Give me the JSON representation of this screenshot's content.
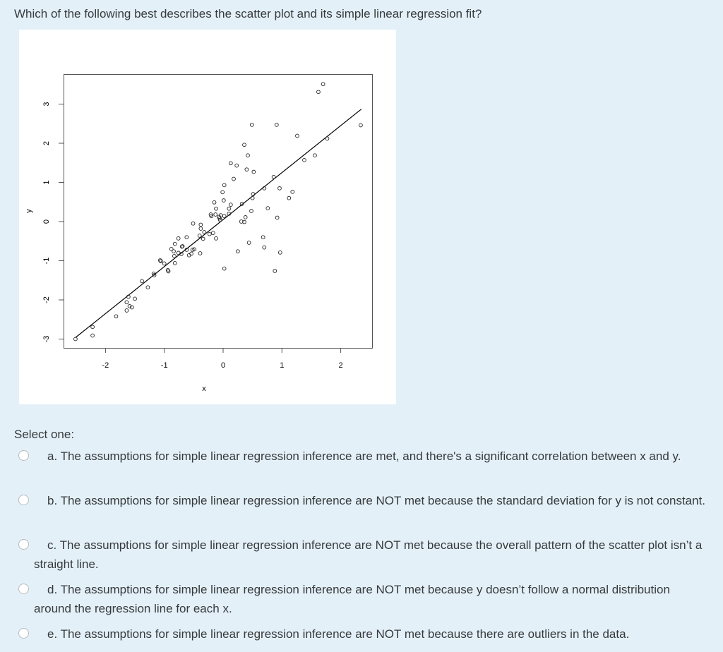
{
  "question": "Which of the following best describes the scatter plot and its simple linear regression fit?",
  "select_label": "Select one:",
  "options": [
    {
      "label": "a. The assumptions for simple linear regression inference are met, and there's a significant correlation between x and y."
    },
    {
      "label": "b. The assumptions for simple linear regression inference are NOT met because the standard deviation for y is not constant."
    },
    {
      "label": "c. The assumptions for simple linear regression inference are NOT met because the overall pattern of the scatter plot isn’t a straight line."
    },
    {
      "label": "d. The assumptions for simple linear regression inference are NOT met because y doesn’t follow a normal distribution around the regression line for each x."
    },
    {
      "label": "e. The assumptions for simple linear regression inference are NOT met because there are outliers in the data."
    }
  ],
  "colors": {
    "background": "#e3f0f8",
    "text": "#373a3c",
    "panel": "#ffffff",
    "ink": "#000000"
  },
  "chart_data": {
    "type": "scatter",
    "xlabel": "x",
    "ylabel": "y",
    "xlim": [
      -2.6,
      2.6
    ],
    "ylim": [
      -3.3,
      3.6
    ],
    "xticks": [
      -2,
      -1,
      0,
      1,
      2
    ],
    "xtick_labels": [
      "-2",
      "-1",
      "0",
      "1",
      "2"
    ],
    "yticks": [
      -3,
      -2,
      -1,
      0,
      1,
      2,
      3
    ],
    "ytick_labels": [
      "-3",
      "-2",
      "-1",
      "0",
      "1",
      "2",
      "3"
    ],
    "grid": false,
    "marker": "open-circle",
    "regression_line": {
      "intercept": 0.05,
      "slope": 1.2,
      "x_range": [
        -2.51,
        2.35
      ]
    },
    "points": [
      [
        -2.51,
        -3.0
      ],
      [
        -2.22,
        -2.69
      ],
      [
        -2.22,
        -2.91
      ],
      [
        -1.82,
        -2.42
      ],
      [
        -1.64,
        -2.27
      ],
      [
        -1.64,
        -2.06
      ],
      [
        -1.61,
        -1.92
      ],
      [
        -1.59,
        -2.16
      ],
      [
        -1.55,
        -2.19
      ],
      [
        -1.5,
        -1.97
      ],
      [
        -1.38,
        -1.52
      ],
      [
        -1.28,
        -1.68
      ],
      [
        -1.18,
        -1.33
      ],
      [
        -1.17,
        -1.37
      ],
      [
        -1.07,
        -0.99
      ],
      [
        -1.06,
        -1.01
      ],
      [
        -1.0,
        -1.07
      ],
      [
        -0.94,
        -1.24
      ],
      [
        -0.93,
        -1.27
      ],
      [
        -0.88,
        -0.7
      ],
      [
        -0.84,
        -0.76
      ],
      [
        -0.83,
        -0.88
      ],
      [
        -0.82,
        -1.06
      ],
      [
        -0.82,
        -0.57
      ],
      [
        -0.76,
        -0.43
      ],
      [
        -0.76,
        -0.8
      ],
      [
        -0.71,
        -0.83
      ],
      [
        -0.7,
        -0.64
      ],
      [
        -0.69,
        -0.63
      ],
      [
        -0.62,
        -0.4
      ],
      [
        -0.62,
        -0.72
      ],
      [
        -0.58,
        -0.86
      ],
      [
        -0.54,
        -0.82
      ],
      [
        -0.52,
        -0.72
      ],
      [
        -0.49,
        -0.71
      ],
      [
        -0.51,
        -0.05
      ],
      [
        -0.39,
        -0.81
      ],
      [
        -0.4,
        -0.36
      ],
      [
        -0.38,
        -0.08
      ],
      [
        -0.38,
        -0.18
      ],
      [
        -0.34,
        -0.44
      ],
      [
        -0.32,
        -0.27
      ],
      [
        -0.23,
        -0.32
      ],
      [
        -0.17,
        -0.29
      ],
      [
        -0.12,
        -0.43
      ],
      [
        -0.21,
        0.18
      ],
      [
        -0.2,
        0.14
      ],
      [
        -0.15,
        0.49
      ],
      [
        -0.12,
        0.33
      ],
      [
        -0.13,
        0.18
      ],
      [
        -0.07,
        0.12
      ],
      [
        -0.06,
        0.08
      ],
      [
        -0.04,
        0.16
      ],
      [
        -0.01,
        0.75
      ],
      [
        0.01,
        0.54
      ],
      [
        0.02,
        0.93
      ],
      [
        0.02,
        -1.2
      ],
      [
        0.02,
        0.14
      ],
      [
        -0.05,
        0.04
      ],
      [
        0.1,
        0.2
      ],
      [
        0.1,
        0.33
      ],
      [
        0.13,
        0.43
      ],
      [
        0.13,
        1.49
      ],
      [
        0.18,
        1.09
      ],
      [
        0.23,
        1.43
      ],
      [
        0.25,
        -0.76
      ],
      [
        0.31,
        0.0
      ],
      [
        0.32,
        0.45
      ],
      [
        0.36,
        -0.01
      ],
      [
        0.38,
        0.11
      ],
      [
        0.4,
        1.33
      ],
      [
        0.36,
        1.96
      ],
      [
        0.42,
        1.69
      ],
      [
        0.44,
        -0.54
      ],
      [
        0.48,
        0.27
      ],
      [
        0.49,
        2.47
      ],
      [
        0.5,
        0.6
      ],
      [
        0.51,
        0.7
      ],
      [
        0.52,
        1.27
      ],
      [
        0.68,
        -0.4
      ],
      [
        0.7,
        -0.66
      ],
      [
        0.7,
        0.85
      ],
      [
        0.76,
        0.34
      ],
      [
        0.86,
        1.14
      ],
      [
        0.88,
        -1.26
      ],
      [
        0.91,
        2.47
      ],
      [
        0.92,
        0.1
      ],
      [
        0.96,
        0.85
      ],
      [
        0.97,
        -0.79
      ],
      [
        1.12,
        0.6
      ],
      [
        1.18,
        0.76
      ],
      [
        1.26,
        2.19
      ],
      [
        1.38,
        1.57
      ],
      [
        1.56,
        1.69
      ],
      [
        1.62,
        3.31
      ],
      [
        1.7,
        3.51
      ],
      [
        1.77,
        2.12
      ],
      [
        2.34,
        2.46
      ]
    ]
  }
}
